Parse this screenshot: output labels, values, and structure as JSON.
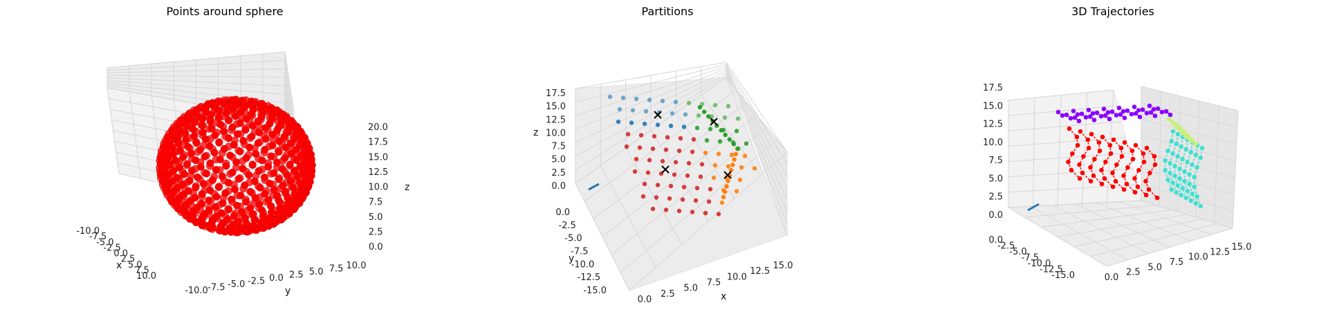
{
  "chart_data": [
    {
      "type": "scatter",
      "title": "Points around sphere",
      "xlabel": "x",
      "ylabel": "y",
      "zlabel": "z",
      "xlim": [
        -10,
        10
      ],
      "ylim": [
        -10,
        10
      ],
      "zlim": [
        0,
        20
      ],
      "x_ticks": [
        "-10.0",
        "-7.5",
        "-5.0",
        "-2.5",
        "0.0",
        "2.5",
        "5.0",
        "7.5",
        "10.0"
      ],
      "y_ticks": [
        "-10.0",
        "-7.5",
        "-5.0",
        "-2.5",
        "0.0",
        "2.5",
        "5.0",
        "7.5",
        "10.0"
      ],
      "z_ticks": [
        "0.0",
        "2.5",
        "5.0",
        "7.5",
        "10.0",
        "12.5",
        "15.0",
        "17.5",
        "20.0"
      ],
      "grid": true,
      "series": [
        {
          "shape": "sphere",
          "center": [
            0,
            0,
            10
          ],
          "radius": 10,
          "point_count": 700,
          "color": "#ff0000"
        }
      ]
    },
    {
      "type": "scatter",
      "title": "Partitions",
      "xlabel": "x",
      "ylabel": "y",
      "zlabel": "z",
      "xlim": [
        0,
        15
      ],
      "ylim": [
        -15,
        0
      ],
      "zlim": [
        0,
        17.5
      ],
      "x_ticks": [
        "0.0",
        "2.5",
        "5.0",
        "7.5",
        "10.0",
        "12.5",
        "15.0"
      ],
      "y_ticks": [
        "0.0",
        "-2.5",
        "-5.0",
        "-7.5",
        "-10.0",
        "-12.5",
        "-15.0"
      ],
      "z_ticks": [
        "0.0",
        "2.5",
        "5.0",
        "7.5",
        "10.0",
        "12.5",
        "15.0",
        "17.5"
      ],
      "grid": true,
      "series": [
        {
          "color": "#1f77b4"
        },
        {
          "color": "#2ca02c"
        },
        {
          "color": "#d62728"
        },
        {
          "color": "#ff7f0e"
        }
      ],
      "centroids": [
        {
          "marker": "x",
          "color": "#000000"
        },
        {
          "marker": "x",
          "color": "#000000"
        },
        {
          "marker": "x",
          "color": "#000000"
        },
        {
          "marker": "x",
          "color": "#000000"
        }
      ]
    },
    {
      "type": "line",
      "title": "3D Trajectories",
      "xlim": [
        0,
        15
      ],
      "ylim": [
        -15,
        0
      ],
      "zlim": [
        0,
        17.5
      ],
      "x_ticks": [
        "0.0",
        "2.5",
        "5.0",
        "7.5",
        "10.0",
        "12.5",
        "15.0"
      ],
      "y_ticks": [
        "0.0",
        "-2.5",
        "-5.0",
        "-7.5",
        "-10.0",
        "-12.5",
        "-15.0"
      ],
      "z_ticks": [
        "0.0",
        "2.5",
        "5.0",
        "7.5",
        "10.0",
        "12.5",
        "15.0",
        "17.5"
      ],
      "grid": true,
      "series": [
        {
          "color": "#8b00ff"
        },
        {
          "color": "#ff0000"
        },
        {
          "color": "#40e0d0"
        },
        {
          "color": "#c8f07a"
        }
      ]
    }
  ]
}
